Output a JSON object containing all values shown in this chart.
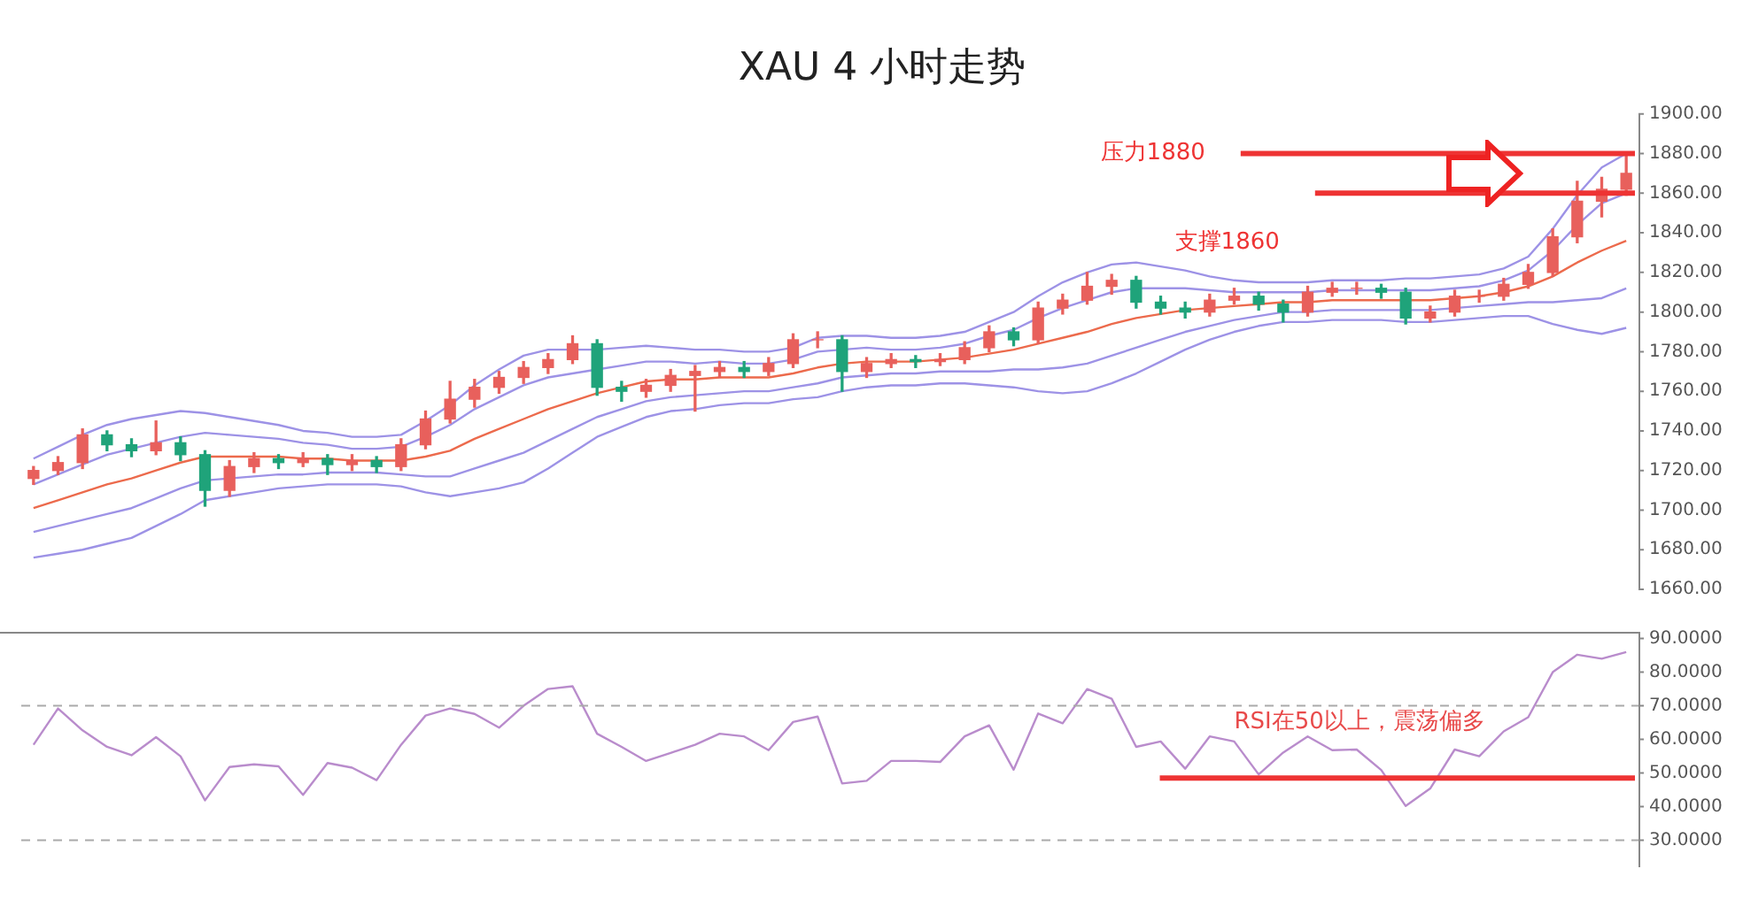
{
  "chart_data": [
    {
      "type": "candlestick",
      "title": "XAU 4 小时走势",
      "categories": [
        null,
        null,
        null,
        null,
        null,
        null,
        null,
        null,
        null,
        null,
        null,
        null,
        null,
        null,
        null,
        null,
        null,
        null,
        null,
        null,
        null,
        null,
        null,
        null,
        null,
        null,
        null,
        null,
        null,
        null,
        null,
        null,
        null,
        null,
        null,
        null,
        null,
        null,
        null,
        null,
        null,
        null,
        null,
        null,
        null,
        null,
        null,
        null,
        null,
        null,
        null,
        null,
        null,
        null,
        null,
        null,
        null,
        null,
        null,
        null,
        null,
        null,
        null,
        null,
        null,
        null
      ],
      "ohlc": [
        [
          1716,
          1722,
          1713,
          1720
        ],
        [
          1720,
          1727,
          1718,
          1724
        ],
        [
          1724,
          1741,
          1721,
          1738
        ],
        [
          1738,
          1740,
          1730,
          1733
        ],
        [
          1733,
          1736,
          1727,
          1730
        ],
        [
          1730,
          1745,
          1728,
          1734
        ],
        [
          1734,
          1737,
          1725,
          1728
        ],
        [
          1728,
          1730,
          1702,
          1710
        ],
        [
          1710,
          1725,
          1707,
          1722
        ],
        [
          1722,
          1729,
          1719,
          1726
        ],
        [
          1726,
          1728,
          1721,
          1724
        ],
        [
          1724,
          1729,
          1722,
          1726
        ],
        [
          1726,
          1728,
          1718,
          1723
        ],
        [
          1723,
          1728,
          1720,
          1725
        ],
        [
          1725,
          1727,
          1719,
          1722
        ],
        [
          1722,
          1736,
          1720,
          1733
        ],
        [
          1733,
          1750,
          1731,
          1746
        ],
        [
          1746,
          1765,
          1744,
          1756
        ],
        [
          1756,
          1766,
          1752,
          1762
        ],
        [
          1762,
          1770,
          1759,
          1767
        ],
        [
          1767,
          1775,
          1764,
          1772
        ],
        [
          1772,
          1779,
          1769,
          1776
        ],
        [
          1776,
          1788,
          1774,
          1784
        ],
        [
          1784,
          1786,
          1758,
          1762
        ],
        [
          1762,
          1765,
          1755,
          1760
        ],
        [
          1760,
          1766,
          1757,
          1763
        ],
        [
          1763,
          1771,
          1760,
          1768
        ],
        [
          1768,
          1773,
          1750,
          1770
        ],
        [
          1770,
          1775,
          1767,
          1772
        ],
        [
          1772,
          1775,
          1767,
          1770
        ],
        [
          1770,
          1777,
          1768,
          1774
        ],
        [
          1774,
          1789,
          1772,
          1786
        ],
        [
          1786,
          1790,
          1782,
          1786
        ],
        [
          1786,
          1788,
          1760,
          1770
        ],
        [
          1770,
          1777,
          1767,
          1774
        ],
        [
          1774,
          1779,
          1772,
          1776
        ],
        [
          1776,
          1778,
          1772,
          1775
        ],
        [
          1775,
          1779,
          1773,
          1776
        ],
        [
          1776,
          1785,
          1774,
          1782
        ],
        [
          1782,
          1793,
          1780,
          1790
        ],
        [
          1790,
          1792,
          1783,
          1786
        ],
        [
          1786,
          1805,
          1784,
          1802
        ],
        [
          1802,
          1809,
          1799,
          1806
        ],
        [
          1806,
          1820,
          1804,
          1813
        ],
        [
          1813,
          1819,
          1809,
          1816
        ],
        [
          1816,
          1818,
          1802,
          1805
        ],
        [
          1805,
          1808,
          1799,
          1802
        ],
        [
          1802,
          1805,
          1797,
          1800
        ],
        [
          1800,
          1809,
          1798,
          1806
        ],
        [
          1806,
          1812,
          1804,
          1808
        ],
        [
          1808,
          1810,
          1801,
          1804
        ],
        [
          1804,
          1806,
          1795,
          1800
        ],
        [
          1800,
          1813,
          1798,
          1810
        ],
        [
          1810,
          1815,
          1808,
          1812
        ],
        [
          1812,
          1815,
          1809,
          1812
        ],
        [
          1812,
          1814,
          1807,
          1810
        ],
        [
          1810,
          1812,
          1794,
          1797
        ],
        [
          1797,
          1803,
          1795,
          1800
        ],
        [
          1800,
          1811,
          1798,
          1808
        ],
        [
          1808,
          1811,
          1805,
          1808
        ],
        [
          1808,
          1817,
          1806,
          1814
        ],
        [
          1814,
          1824,
          1812,
          1820
        ],
        [
          1820,
          1842,
          1818,
          1838
        ],
        [
          1838,
          1866,
          1835,
          1856
        ],
        [
          1856,
          1868,
          1848,
          1862
        ],
        [
          1862,
          1879,
          1859,
          1870
        ]
      ],
      "series": [
        {
          "type": "line",
          "color": "#9d92e6",
          "values": [
            1726,
            1732,
            1738,
            1743,
            1746,
            1748,
            1750,
            1749,
            1747,
            1745,
            1743,
            1740,
            1739,
            1737,
            1737,
            1738,
            1745,
            1753,
            1763,
            1771,
            1778,
            1781,
            1781,
            1781,
            1782,
            1783,
            1782,
            1781,
            1781,
            1780,
            1780,
            1782,
            1787,
            1788,
            1788,
            1787,
            1787,
            1788,
            1790,
            1795,
            1800,
            1808,
            1815,
            1820,
            1824,
            1825,
            1823,
            1821,
            1818,
            1816,
            1815,
            1815,
            1815,
            1816,
            1816,
            1816,
            1817,
            1817,
            1818,
            1819,
            1822,
            1828,
            1842,
            1859,
            1873,
            1880
          ]
        },
        {
          "type": "line",
          "color": "#9d92e6",
          "values": [
            1713,
            1718,
            1723,
            1728,
            1731,
            1734,
            1737,
            1739,
            1738,
            1737,
            1736,
            1734,
            1733,
            1731,
            1731,
            1732,
            1737,
            1743,
            1751,
            1757,
            1763,
            1767,
            1769,
            1771,
            1773,
            1775,
            1775,
            1774,
            1775,
            1774,
            1774,
            1776,
            1780,
            1781,
            1782,
            1781,
            1781,
            1782,
            1784,
            1788,
            1791,
            1797,
            1802,
            1806,
            1810,
            1812,
            1812,
            1812,
            1811,
            1810,
            1810,
            1810,
            1810,
            1811,
            1811,
            1811,
            1811,
            1811,
            1812,
            1813,
            1816,
            1821,
            1831,
            1844,
            1855,
            1860
          ]
        },
        {
          "type": "line",
          "color": "#ec6a4c",
          "values": [
            1701,
            1705,
            1709,
            1713,
            1716,
            1720,
            1724,
            1727,
            1727,
            1727,
            1727,
            1726,
            1726,
            1725,
            1725,
            1725,
            1727,
            1730,
            1736,
            1741,
            1746,
            1751,
            1755,
            1759,
            1762,
            1765,
            1766,
            1766,
            1767,
            1767,
            1767,
            1769,
            1772,
            1774,
            1775,
            1775,
            1775,
            1776,
            1777,
            1779,
            1781,
            1784,
            1787,
            1790,
            1794,
            1797,
            1799,
            1801,
            1802,
            1803,
            1804,
            1805,
            1805,
            1806,
            1806,
            1806,
            1806,
            1806,
            1807,
            1808,
            1810,
            1813,
            1818,
            1825,
            1831,
            1836
          ]
        },
        {
          "type": "line",
          "color": "#9d92e6",
          "values": [
            1689,
            1692,
            1695,
            1698,
            1701,
            1706,
            1711,
            1715,
            1716,
            1717,
            1718,
            1718,
            1719,
            1719,
            1719,
            1718,
            1717,
            1717,
            1721,
            1725,
            1729,
            1735,
            1741,
            1747,
            1751,
            1755,
            1757,
            1758,
            1759,
            1760,
            1760,
            1762,
            1764,
            1767,
            1768,
            1769,
            1769,
            1770,
            1770,
            1770,
            1771,
            1771,
            1772,
            1774,
            1778,
            1782,
            1786,
            1790,
            1793,
            1796,
            1798,
            1800,
            1800,
            1801,
            1801,
            1801,
            1801,
            1801,
            1802,
            1803,
            1804,
            1805,
            1805,
            1806,
            1807,
            1812
          ]
        },
        {
          "type": "line",
          "color": "#9d92e6",
          "values": [
            1676,
            1678,
            1680,
            1683,
            1686,
            1692,
            1698,
            1705,
            1707,
            1709,
            1711,
            1712,
            1713,
            1713,
            1713,
            1712,
            1709,
            1707,
            1709,
            1711,
            1714,
            1721,
            1729,
            1737,
            1742,
            1747,
            1750,
            1751,
            1753,
            1754,
            1754,
            1756,
            1757,
            1760,
            1762,
            1763,
            1763,
            1764,
            1764,
            1763,
            1762,
            1760,
            1759,
            1760,
            1764,
            1769,
            1775,
            1781,
            1786,
            1790,
            1793,
            1795,
            1795,
            1796,
            1796,
            1796,
            1795,
            1795,
            1796,
            1797,
            1798,
            1798,
            1794,
            1791,
            1789,
            1792
          ]
        }
      ],
      "ylim": [
        1660,
        1900
      ],
      "yticks": [
        {
          "value": 1660,
          "label": "1660.00"
        },
        {
          "value": 1680,
          "label": "1680.00"
        },
        {
          "value": 1700,
          "label": "1700.00"
        },
        {
          "value": 1720,
          "label": "1720.00"
        },
        {
          "value": 1740,
          "label": "1740.00"
        },
        {
          "value": 1760,
          "label": "1760.00"
        },
        {
          "value": 1780,
          "label": "1780.00"
        },
        {
          "value": 1800,
          "label": "1800.00"
        },
        {
          "value": 1820,
          "label": "1820.00"
        },
        {
          "value": 1840,
          "label": "1840.00"
        },
        {
          "value": 1860,
          "label": "1860.00"
        },
        {
          "value": 1880,
          "label": "1880.00"
        },
        {
          "value": 1900,
          "label": "1900.00"
        }
      ],
      "ref_lines": [
        {
          "axis": "y",
          "value": 1880,
          "label": "压力1880",
          "color": "#ee3333"
        },
        {
          "axis": "y",
          "value": 1860,
          "label": "支撑1860",
          "color": "#ee3333"
        }
      ],
      "tick_labels": "y",
      "marker": "none"
    },
    {
      "type": "line",
      "categories": [
        null,
        null,
        null,
        null,
        null,
        null,
        null,
        null,
        null,
        null,
        null,
        null,
        null,
        null,
        null,
        null,
        null,
        null,
        null,
        null,
        null,
        null,
        null,
        null,
        null,
        null,
        null,
        null,
        null,
        null,
        null,
        null,
        null,
        null,
        null,
        null,
        null,
        null,
        null,
        null,
        null,
        null,
        null,
        null,
        null,
        null,
        null,
        null,
        null,
        null,
        null,
        null,
        null,
        null,
        null,
        null,
        null,
        null,
        null,
        null,
        null,
        null,
        null,
        null,
        null,
        null
      ],
      "series": [
        {
          "color": "#b98ccc",
          "values": [
            58.4,
            69.2,
            62.7,
            57.8,
            55.3,
            60.7,
            55,
            41.9,
            51.8,
            52.6,
            52,
            43.5,
            53,
            51.6,
            47.9,
            58.4,
            67.1,
            69.2,
            67.6,
            63.5,
            70,
            75,
            75.8,
            61.7,
            57.8,
            53.6,
            56,
            58.4,
            61.7,
            60.9,
            56.8,
            65.2,
            66.8,
            46.9,
            47.7,
            53.6,
            53.6,
            53.3,
            60.9,
            64.2,
            51,
            67.7,
            64.8,
            75,
            72.1,
            57.8,
            59.4,
            51.3,
            60.9,
            59.4,
            49.6,
            56.1,
            60.9,
            56.8,
            57,
            50.9,
            40.2,
            45.4,
            57,
            55,
            62.4,
            66.6,
            80,
            85.2,
            84,
            86
          ]
        }
      ],
      "ylim": [
        22,
        92
      ],
      "yticks": [
        {
          "value": 30,
          "label": "30.0000"
        },
        {
          "value": 40,
          "label": "40.0000"
        },
        {
          "value": 50,
          "label": "50.0000"
        },
        {
          "value": 60,
          "label": "60.0000"
        },
        {
          "value": 70,
          "label": "70.0000"
        },
        {
          "value": 80,
          "label": "80.0000"
        },
        {
          "value": 90,
          "label": "90.0000"
        }
      ],
      "ref_lines": [
        {
          "axis": "y",
          "value": 70,
          "color": "#aaaaaa",
          "line_style": "dashed"
        },
        {
          "axis": "y",
          "value": 30,
          "color": "#aaaaaa",
          "line_style": "dashed"
        },
        {
          "axis": "y",
          "value": 48.5,
          "color": "#ee3333"
        }
      ],
      "annotations": [
        "RSI在50以上，震荡偏多"
      ],
      "tick_labels": "y",
      "marker": "none"
    }
  ]
}
